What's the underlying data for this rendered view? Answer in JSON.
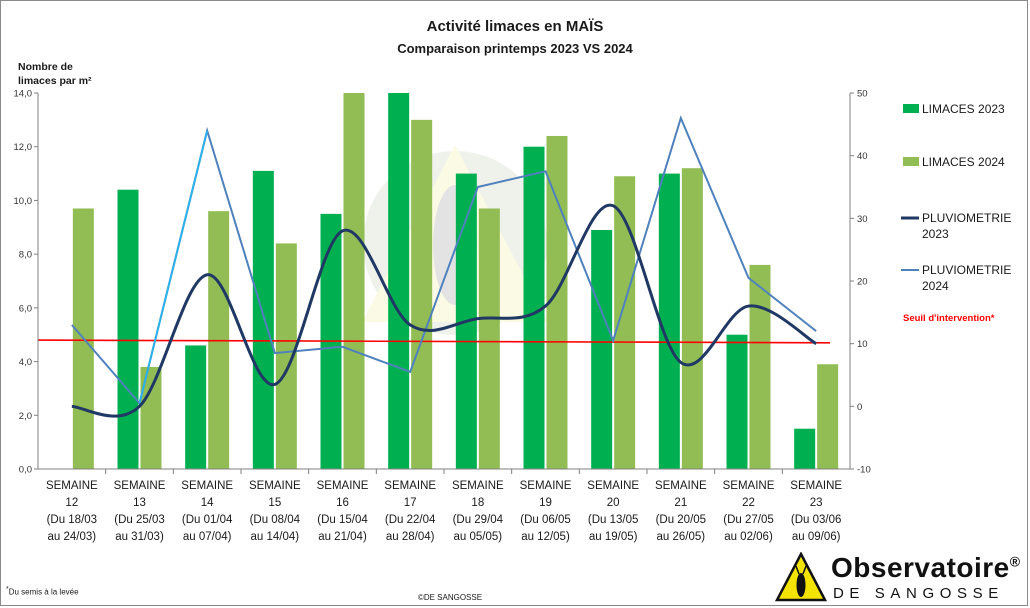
{
  "header": {
    "title": "Activité limaces en MAÏS",
    "subtitle": "Comparaison printemps 2023 VS 2024"
  },
  "left_axis_label": "Nombre de limaces par m²",
  "footnote": "Du semis à la levée",
  "copyright": "©DE SANGOSSE",
  "logo": {
    "brand": "Observatoire",
    "reg": "®",
    "sub": "DE SANGOSSE"
  },
  "colors": {
    "limaces_2023": "#00b050",
    "limaces_2024": "#92bd54",
    "pluvio_2023": "#1f3864",
    "pluvio_2024": "#4f81bd",
    "seuil": "#ff0000",
    "pluvio_2024_highlight": "#2eb0e8"
  },
  "chart_data": {
    "type": "bar",
    "title": "Activité limaces en MAÏS",
    "subtitle": "Comparaison printemps 2023 VS 2024",
    "ylabel": "Nombre de limaces par m²",
    "ylim": [
      0,
      14
    ],
    "y_ticks": [
      "0,0",
      "2,0",
      "4,0",
      "6,0",
      "8,0",
      "10,0",
      "12,0",
      "14,0"
    ],
    "y2lim": [
      -10,
      50
    ],
    "y2_ticks": [
      "-10",
      "0",
      "10",
      "20",
      "30",
      "40",
      "50"
    ],
    "categories": [
      [
        "SEMAINE",
        "12",
        "(Du 18/03",
        "au 24/03)"
      ],
      [
        "SEMAINE",
        "13",
        "(Du 25/03",
        "au 31/03)"
      ],
      [
        "SEMAINE",
        "14",
        "(Du 01/04",
        "au 07/04)"
      ],
      [
        "SEMAINE",
        "15",
        "(Du 08/04",
        "au 14/04)"
      ],
      [
        "SEMAINE",
        "16",
        "(Du 15/04",
        "au 21/04)"
      ],
      [
        "SEMAINE",
        "17",
        "(Du 22/04",
        "au 28/04)"
      ],
      [
        "SEMAINE",
        "18",
        "(Du 29/04",
        "au 05/05)"
      ],
      [
        "SEMAINE",
        "19",
        "(Du 06/05",
        "au 12/05)"
      ],
      [
        "SEMAINE",
        "20",
        "(Du 13/05",
        "au 19/05)"
      ],
      [
        "SEMAINE",
        "21",
        "(Du 20/05",
        "au 26/05)"
      ],
      [
        "SEMAINE",
        "22",
        "(Du 27/05",
        "au 02/06)"
      ],
      [
        "SEMAINE",
        "23",
        "(Du 03/06",
        "au 09/06)"
      ]
    ],
    "series": [
      {
        "name": "LIMACES 2023",
        "axis": "left",
        "kind": "bar",
        "values": [
          null,
          10.4,
          4.6,
          11.1,
          9.5,
          14.0,
          11.0,
          12.0,
          8.9,
          11.0,
          5.0,
          1.5
        ]
      },
      {
        "name": "LIMACES 2024",
        "axis": "left",
        "kind": "bar",
        "values": [
          9.7,
          3.8,
          9.6,
          8.4,
          14.0,
          13.0,
          9.7,
          12.4,
          10.9,
          11.2,
          7.6,
          3.9
        ]
      },
      {
        "name": "PLUVIOMETRIE 2023",
        "axis": "right",
        "kind": "smooth-line",
        "values": [
          0,
          0,
          21,
          3.5,
          28,
          13,
          14,
          16,
          32,
          7,
          16,
          10
        ]
      },
      {
        "name": "PLUVIOMETRIE 2024",
        "axis": "right",
        "kind": "line",
        "values": [
          13,
          0.5,
          44,
          8.5,
          9.5,
          5.5,
          35,
          37.5,
          10.5,
          46,
          20.5,
          12
        ]
      }
    ],
    "threshold": {
      "name": "Seuil d'intervention*",
      "start": 4.8,
      "end": 4.7
    },
    "legend": {
      "position": "right",
      "entries": [
        [
          "LIMACES 2023"
        ],
        [
          "LIMACES 2024"
        ],
        [
          "PLUVIOMETRIE",
          "2023"
        ],
        [
          "PLUVIOMETRIE",
          "2024"
        ]
      ],
      "seuil_label": "Seuil d'intervention*"
    }
  }
}
